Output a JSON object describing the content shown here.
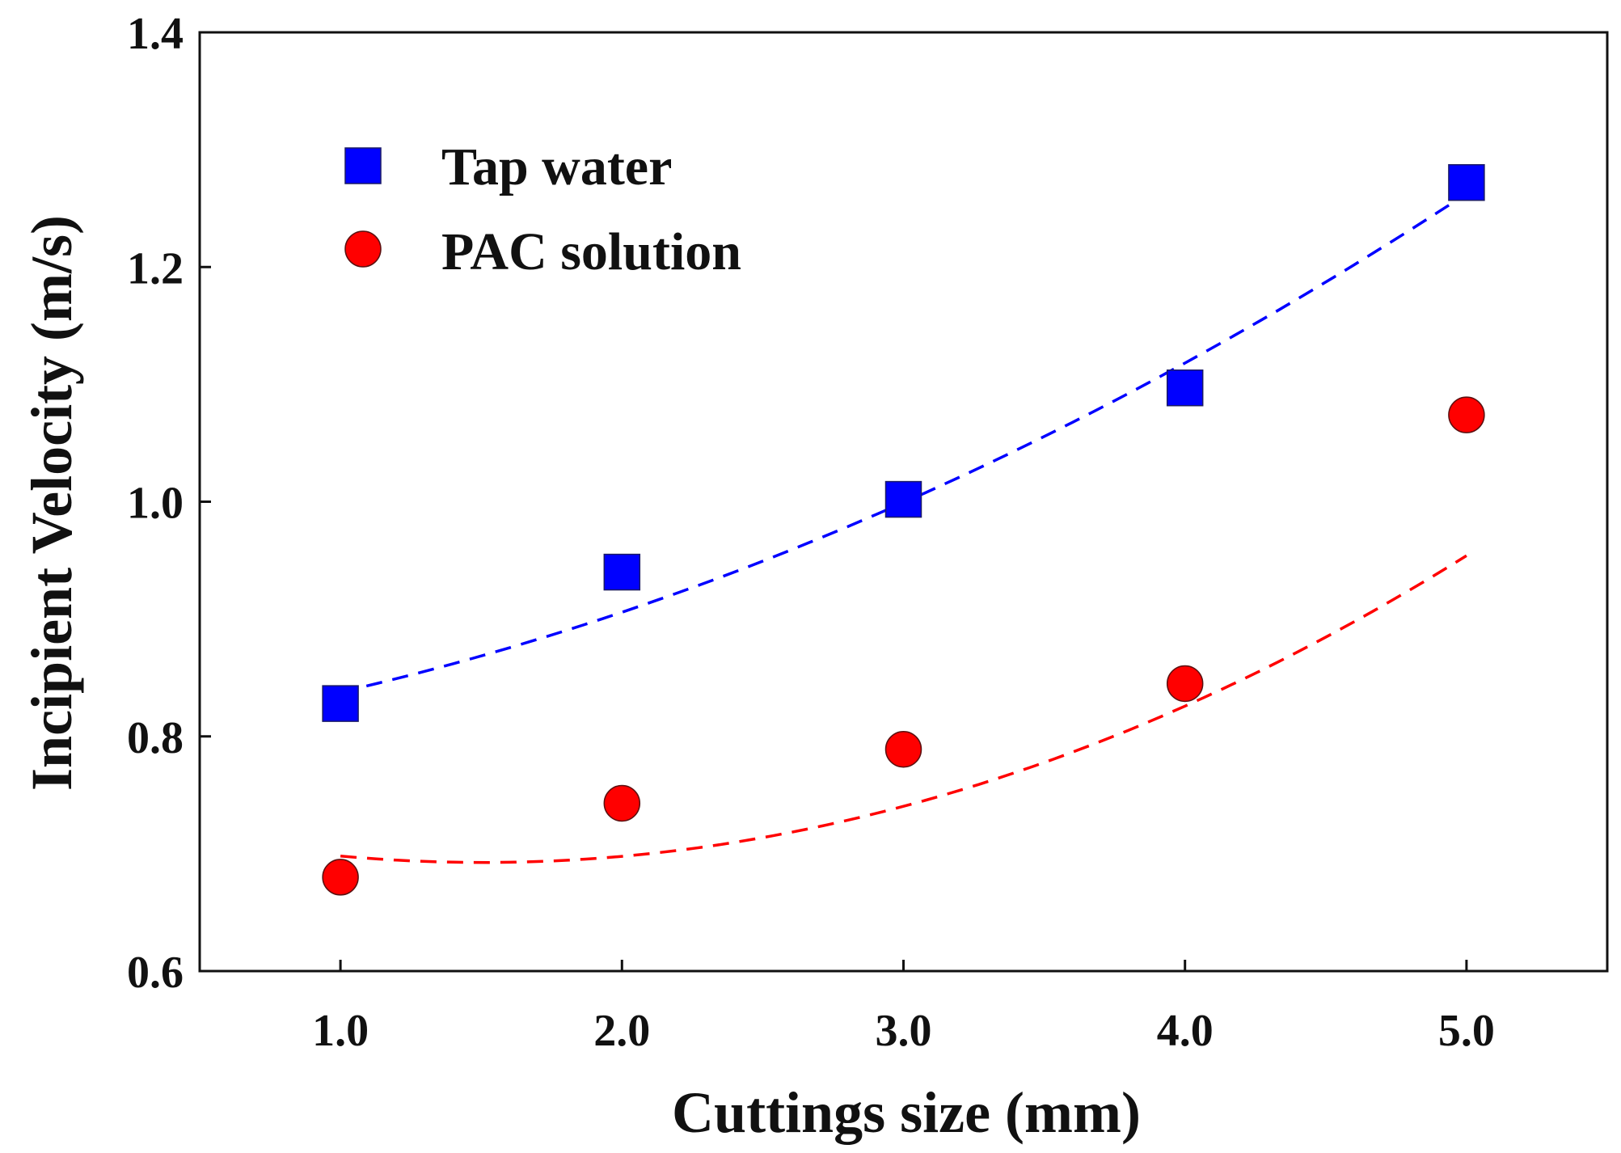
{
  "chart_data": {
    "type": "scatter",
    "title": "",
    "xlabel": "Cuttings size (mm)",
    "ylabel": "Incipient Velocity (m/s)",
    "xlim": [
      0.5,
      5.5
    ],
    "ylim": [
      0.6,
      1.4
    ],
    "xticks": [
      1.0,
      2.0,
      3.0,
      4.0,
      5.0
    ],
    "xtick_labels": [
      "1.0",
      "2.0",
      "3.0",
      "4.0",
      "5.0"
    ],
    "yticks": [
      0.6,
      0.8,
      1.0,
      1.2,
      1.4
    ],
    "ytick_labels": [
      "0.6",
      "0.8",
      "1.0",
      "1.2",
      "1.4"
    ],
    "grid": false,
    "legend_position": "top-left",
    "series": [
      {
        "name": "Tap water",
        "marker": "square",
        "color": "#0000ff",
        "x": [
          1.0,
          2.0,
          3.0,
          4.0,
          5.0
        ],
        "y": [
          0.828,
          0.94,
          1.002,
          1.097,
          1.272
        ],
        "trendline": {
          "style": "dashed",
          "degree": 2,
          "coefficients": [
            0.795,
            0.03,
            0.0127
          ]
        }
      },
      {
        "name": "PAC solution",
        "marker": "circle",
        "color": "#ff0000",
        "x": [
          1.0,
          2.0,
          3.0,
          4.0,
          5.0
        ],
        "y": [
          0.68,
          0.743,
          0.789,
          0.845,
          1.074
        ],
        "trendline": {
          "style": "dashed",
          "degree": 2,
          "coefficients": [
            0.741,
            -0.0644,
            0.0214
          ]
        }
      }
    ]
  }
}
